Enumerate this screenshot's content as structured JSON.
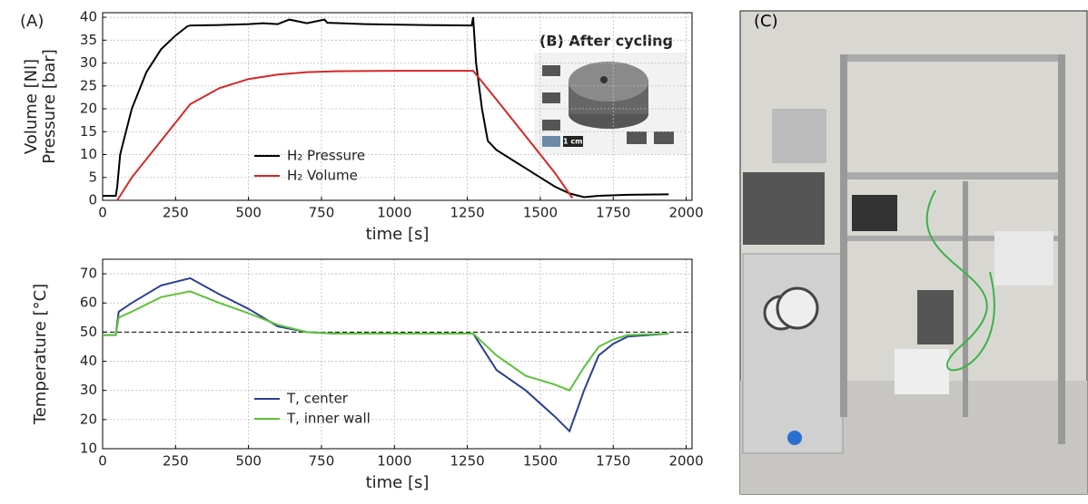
{
  "panels": {
    "a": "(A)",
    "b": "(B) After cycling",
    "scale": "1 cm",
    "c": "(C)"
  },
  "chart_data": [
    {
      "type": "line",
      "xlabel": "time [s]",
      "ylabel": [
        "Volume [Nl]",
        "Pressure [bar]"
      ],
      "xlim": [
        0,
        2020
      ],
      "ylim": [
        0,
        41
      ],
      "xticks": [
        0,
        250,
        500,
        750,
        1000,
        1250,
        1500,
        1750,
        2000
      ],
      "yticks": [
        0,
        5,
        10,
        15,
        20,
        25,
        30,
        35,
        40
      ],
      "grid": true,
      "legend": "lower center",
      "series": [
        {
          "name": "H₂ Pressure",
          "color": "#000000",
          "x": [
            0,
            45,
            50,
            60,
            100,
            150,
            200,
            250,
            290,
            300,
            400,
            500,
            550,
            600,
            640,
            700,
            760,
            770,
            900,
            1100,
            1265,
            1270,
            1280,
            1300,
            1320,
            1350,
            1400,
            1450,
            1500,
            1550,
            1600,
            1650,
            1700,
            1800,
            1940
          ],
          "values": [
            1,
            1,
            3,
            10,
            20,
            28,
            33,
            36,
            38,
            38.2,
            38.3,
            38.5,
            38.7,
            38.5,
            39.5,
            38.7,
            39.5,
            38.8,
            38.5,
            38.3,
            38.2,
            40,
            30,
            20,
            13,
            11,
            9,
            7,
            5,
            3,
            1.5,
            0.7,
            1,
            1.2,
            1.3
          ]
        },
        {
          "name": "H₂ Volume",
          "color": "#d62728",
          "x": [
            50,
            100,
            200,
            300,
            400,
            500,
            600,
            700,
            800,
            1000,
            1200,
            1270,
            1350,
            1450,
            1550,
            1610
          ],
          "values": [
            0,
            5,
            13,
            21,
            24.5,
            26.5,
            27.5,
            28,
            28.2,
            28.3,
            28.3,
            28.3,
            22,
            14,
            6,
            0.5
          ]
        }
      ]
    },
    {
      "type": "line",
      "xlabel": "time [s]",
      "ylabel": [
        "Temperature [°C]"
      ],
      "xlim": [
        0,
        2020
      ],
      "ylim": [
        10,
        75
      ],
      "xticks": [
        0,
        250,
        500,
        750,
        1000,
        1250,
        1500,
        1750,
        2000
      ],
      "yticks": [
        10,
        20,
        30,
        40,
        50,
        60,
        70
      ],
      "grid": true,
      "legend": "lower center",
      "hline": 50,
      "series": [
        {
          "name": "T, center",
          "color": "#2a3f93",
          "x": [
            0,
            45,
            55,
            100,
            200,
            300,
            400,
            500,
            600,
            700,
            800,
            1000,
            1270,
            1350,
            1450,
            1550,
            1600,
            1650,
            1700,
            1750,
            1800,
            1940
          ],
          "values": [
            49,
            49,
            57,
            60,
            66,
            68.5,
            63,
            58,
            52,
            50,
            49.5,
            49.5,
            49.5,
            37,
            30,
            21,
            16,
            30,
            42,
            46,
            48.5,
            49.5
          ]
        },
        {
          "name": "T, inner wall",
          "color": "#5cc23a",
          "x": [
            0,
            45,
            55,
            100,
            200,
            300,
            400,
            500,
            600,
            700,
            800,
            1000,
            1270,
            1350,
            1450,
            1550,
            1600,
            1650,
            1700,
            1750,
            1800,
            1940
          ],
          "values": [
            49,
            49,
            55,
            57,
            62,
            64,
            60,
            56.5,
            52.5,
            50,
            49.5,
            49.5,
            49.5,
            42,
            35,
            32,
            30,
            38,
            45,
            47.5,
            49,
            49.5
          ]
        }
      ]
    }
  ]
}
